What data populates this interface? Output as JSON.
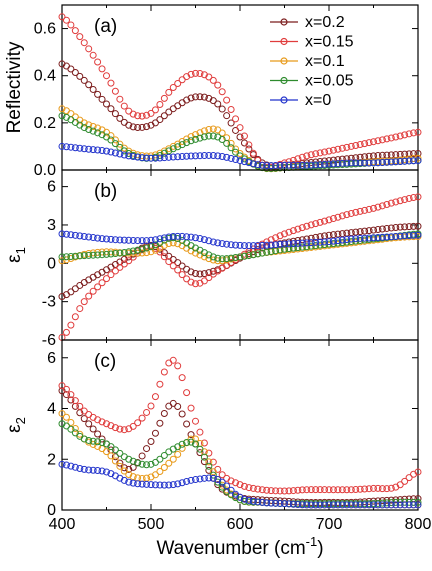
{
  "chart_data": [
    {
      "type": "scatter",
      "panel_label": "(a)",
      "ylabel": "Reflectivity",
      "xlim": [
        400,
        800
      ],
      "ylim": [
        0,
        0.7
      ],
      "yticks": [
        "0.0",
        "0.2",
        "0.4",
        "0.6"
      ],
      "x": [
        400,
        425,
        450,
        475,
        500,
        525,
        550,
        575,
        600,
        625,
        650,
        675,
        700,
        725,
        750,
        775,
        800
      ],
      "series": [
        {
          "name": "x=0.2",
          "color": "#7b1c1c",
          "values": [
            0.45,
            0.38,
            0.28,
            0.19,
            0.19,
            0.26,
            0.31,
            0.28,
            0.14,
            0.03,
            0.02,
            0.03,
            0.04,
            0.05,
            0.06,
            0.065,
            0.07
          ]
        },
        {
          "name": "x=0.15",
          "color": "#e03c3c",
          "values": [
            0.65,
            0.54,
            0.4,
            0.25,
            0.24,
            0.35,
            0.41,
            0.36,
            0.18,
            0.02,
            0.03,
            0.06,
            0.08,
            0.1,
            0.12,
            0.14,
            0.16
          ]
        },
        {
          "name": "x=0.1",
          "color": "#e89a1a",
          "values": [
            0.26,
            0.2,
            0.16,
            0.08,
            0.06,
            0.1,
            0.15,
            0.17,
            0.07,
            0.01,
            0.01,
            0.02,
            0.025,
            0.03,
            0.035,
            0.04,
            0.05
          ]
        },
        {
          "name": "x=0.05",
          "color": "#2e8b2e",
          "values": [
            0.23,
            0.18,
            0.14,
            0.07,
            0.05,
            0.09,
            0.13,
            0.14,
            0.06,
            0.01,
            0.01,
            0.015,
            0.02,
            0.025,
            0.03,
            0.035,
            0.04
          ]
        },
        {
          "name": "x=0",
          "color": "#2233cc",
          "values": [
            0.1,
            0.09,
            0.08,
            0.06,
            0.05,
            0.055,
            0.06,
            0.06,
            0.04,
            0.02,
            0.02,
            0.02,
            0.025,
            0.03,
            0.03,
            0.035,
            0.04
          ]
        }
      ]
    },
    {
      "type": "scatter",
      "panel_label": "(b)",
      "ylabel": "ε",
      "ylabel_subscript": "1",
      "xlim": [
        400,
        800
      ],
      "ylim": [
        -6,
        7.3
      ],
      "yticks": [
        "-6",
        "-3",
        "0",
        "3",
        "6"
      ],
      "x": [
        400,
        425,
        450,
        475,
        500,
        525,
        550,
        575,
        600,
        625,
        650,
        675,
        700,
        725,
        750,
        775,
        800
      ],
      "series": [
        {
          "name": "x=0.2",
          "color": "#7b1c1c",
          "values": [
            -2.6,
            -1.5,
            -0.5,
            0.5,
            1.4,
            0.3,
            -0.8,
            -0.5,
            0.4,
            1.2,
            1.6,
            1.9,
            2.2,
            2.4,
            2.6,
            2.8,
            2.9
          ]
        },
        {
          "name": "x=0.15",
          "color": "#e03c3c",
          "values": [
            -5.8,
            -3.0,
            -1.2,
            0.2,
            1.3,
            -0.2,
            -1.6,
            -0.6,
            0.5,
            1.5,
            2.3,
            2.9,
            3.4,
            3.9,
            4.3,
            4.8,
            5.2
          ]
        },
        {
          "name": "x=0.1",
          "color": "#e89a1a",
          "values": [
            0.2,
            0.7,
            0.9,
            0.8,
            0.9,
            1.6,
            0.8,
            0.2,
            0.5,
            0.8,
            1.0,
            1.2,
            1.4,
            1.6,
            1.8,
            2.0,
            2.1
          ]
        },
        {
          "name": "x=0.05",
          "color": "#2e8b2e",
          "values": [
            0.5,
            0.6,
            0.7,
            0.9,
            1.3,
            2.0,
            1.2,
            0.4,
            0.5,
            0.8,
            1.1,
            1.3,
            1.5,
            1.7,
            1.9,
            2.1,
            2.3
          ]
        },
        {
          "name": "x=0",
          "color": "#2233cc",
          "values": [
            2.3,
            2.1,
            1.9,
            1.8,
            1.8,
            2.1,
            2.0,
            1.6,
            1.4,
            1.4,
            1.5,
            1.6,
            1.7,
            1.9,
            2.0,
            2.1,
            2.2
          ]
        }
      ]
    },
    {
      "type": "scatter",
      "panel_label": "(c)",
      "ylabel": "ε",
      "ylabel_subscript": "2",
      "xlim": [
        400,
        800
      ],
      "ylim": [
        0,
        6.7
      ],
      "yticks": [
        "0",
        "2",
        "4",
        "6"
      ],
      "xticks": [
        "400",
        "500",
        "600",
        "700",
        "800"
      ],
      "xlabel": "Wavenumber (cm",
      "xlabel_superscript": "-1",
      "xlabel_suffix": ")",
      "x": [
        400,
        425,
        450,
        475,
        500,
        525,
        550,
        575,
        600,
        625,
        650,
        675,
        700,
        725,
        750,
        775,
        800
      ],
      "series": [
        {
          "name": "x=0.2",
          "color": "#7b1c1c",
          "values": [
            4.7,
            3.6,
            2.6,
            1.6,
            2.7,
            4.2,
            2.6,
            1.0,
            0.5,
            0.4,
            0.35,
            0.3,
            0.3,
            0.3,
            0.35,
            0.4,
            0.45
          ]
        },
        {
          "name": "x=0.15",
          "color": "#e03c3c",
          "values": [
            4.9,
            3.9,
            3.4,
            3.2,
            4.1,
            5.9,
            3.5,
            1.6,
            1.0,
            0.8,
            0.75,
            0.8,
            0.8,
            0.8,
            0.85,
            0.9,
            1.5
          ]
        },
        {
          "name": "x=0.1",
          "color": "#e89a1a",
          "values": [
            3.8,
            2.8,
            2.3,
            1.4,
            1.3,
            2.0,
            2.8,
            1.2,
            0.4,
            0.3,
            0.25,
            0.2,
            0.2,
            0.2,
            0.2,
            0.2,
            0.2
          ]
        },
        {
          "name": "x=0.05",
          "color": "#2e8b2e",
          "values": [
            3.4,
            2.8,
            2.6,
            2.0,
            1.8,
            2.4,
            2.6,
            1.1,
            0.4,
            0.3,
            0.25,
            0.25,
            0.25,
            0.25,
            0.25,
            0.3,
            0.3
          ]
        },
        {
          "name": "x=0",
          "color": "#2233cc",
          "values": [
            1.8,
            1.6,
            1.5,
            1.1,
            1.0,
            1.0,
            1.2,
            1.2,
            0.5,
            0.3,
            0.25,
            0.2,
            0.2,
            0.2,
            0.2,
            0.2,
            0.2
          ]
        }
      ]
    }
  ]
}
